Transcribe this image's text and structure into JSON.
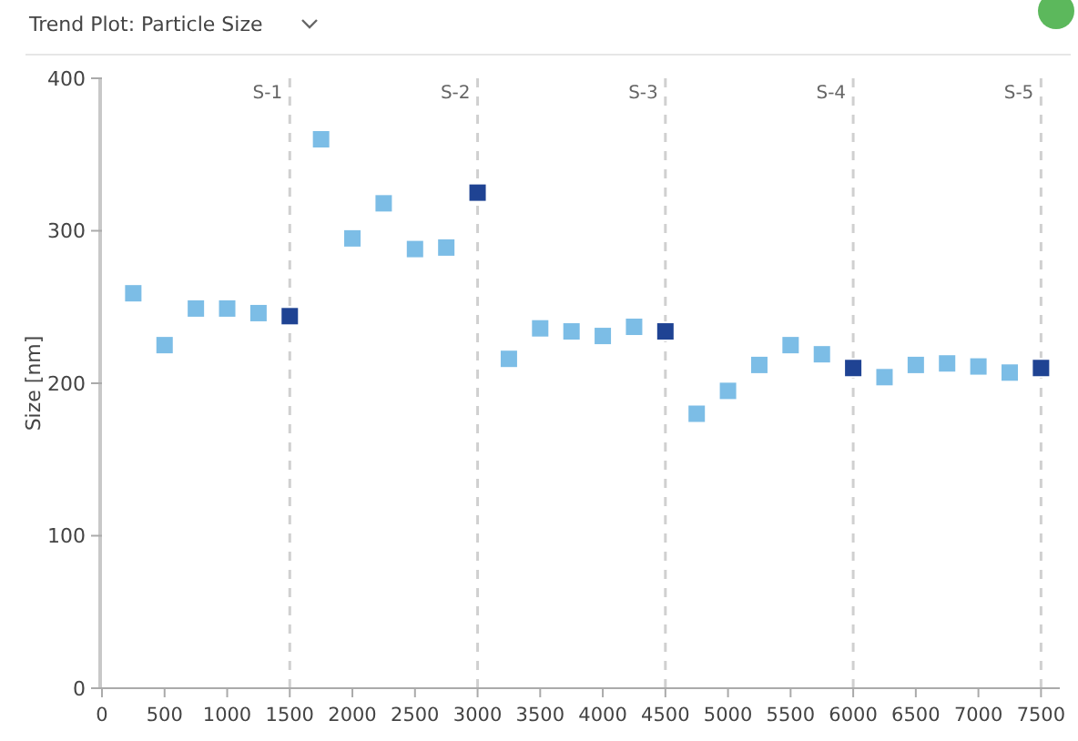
{
  "chart_data": {
    "type": "scatter",
    "title": "Trend Plot: Particle Size",
    "ylabel": "Size [nm]",
    "marker": "square",
    "xlim": [
      0,
      7650
    ],
    "xticks": [
      0,
      500,
      1000,
      1500,
      2000,
      2500,
      3000,
      3500,
      4000,
      4500,
      5000,
      5500,
      6000,
      6500,
      7000,
      7500
    ],
    "ylim": [
      0,
      400
    ],
    "yticks": [
      0,
      100,
      200,
      300,
      400
    ],
    "series": [
      {
        "color": "#7cbde6",
        "x": [
          250,
          500,
          750,
          1000,
          1250,
          1750,
          2000,
          2250,
          2500,
          2750,
          3250,
          3500,
          3750,
          4000,
          4250,
          4750,
          5000,
          5250,
          5500,
          5750,
          6250,
          6500,
          6750,
          7000,
          7250
        ],
        "values": [
          259,
          225,
          249,
          249,
          246,
          360,
          295,
          318,
          288,
          289,
          216,
          236,
          234,
          231,
          237,
          180,
          195,
          212,
          225,
          219,
          204,
          212,
          213,
          211,
          207
        ]
      },
      {
        "color": "#1f4393",
        "x": [
          1500,
          3000,
          4500,
          6000,
          7500
        ],
        "values": [
          244,
          325,
          234,
          210,
          210
        ]
      }
    ],
    "ref_lines": [
      {
        "axis": "x",
        "value": 1500,
        "label": "S-1",
        "color": "#d0d0d0",
        "line_style": "dashed"
      },
      {
        "axis": "x",
        "value": 3000,
        "label": "S-2",
        "color": "#d0d0d0",
        "line_style": "dashed"
      },
      {
        "axis": "x",
        "value": 4500,
        "label": "S-3",
        "color": "#d0d0d0",
        "line_style": "dashed"
      },
      {
        "axis": "x",
        "value": 6000,
        "label": "S-4",
        "color": "#d0d0d0",
        "line_style": "dashed"
      },
      {
        "axis": "x",
        "value": 7500,
        "label": "S-5",
        "color": "#d0d0d0",
        "line_style": "dashed"
      }
    ]
  }
}
